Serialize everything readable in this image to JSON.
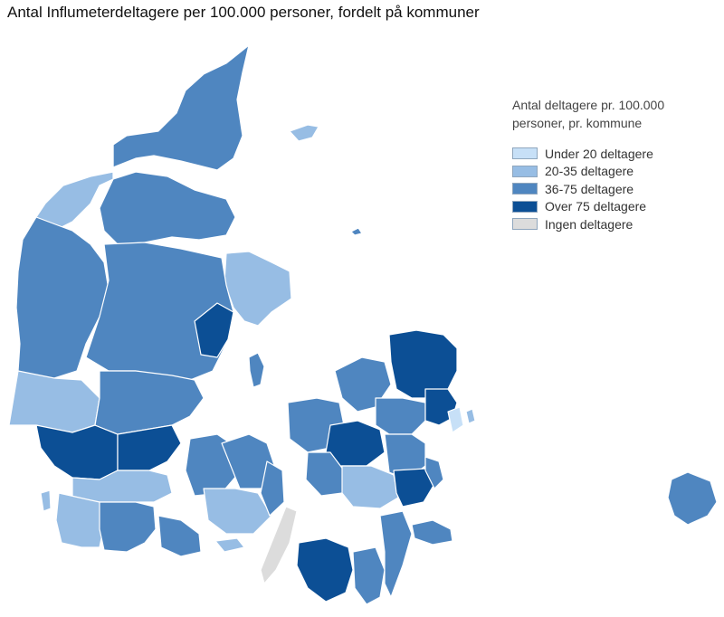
{
  "title": "Antal Influmeterdeltagere per 100.000 personer, fordelt på kommuner",
  "legend": {
    "heading_line1": "Antal deltagere pr. 100.000",
    "heading_line2": "personer, pr. kommune",
    "items": [
      {
        "label": "Under 20 deltagere",
        "color": "#c7e0f7"
      },
      {
        "label": "20-35 deltagere",
        "color": "#97bde4"
      },
      {
        "label": "36-75 deltagere",
        "color": "#4f86c0"
      },
      {
        "label": "Over 75 deltagere",
        "color": "#0c4f95"
      },
      {
        "label": "Ingen deltagere",
        "color": "#dcdcdc"
      }
    ]
  }
}
